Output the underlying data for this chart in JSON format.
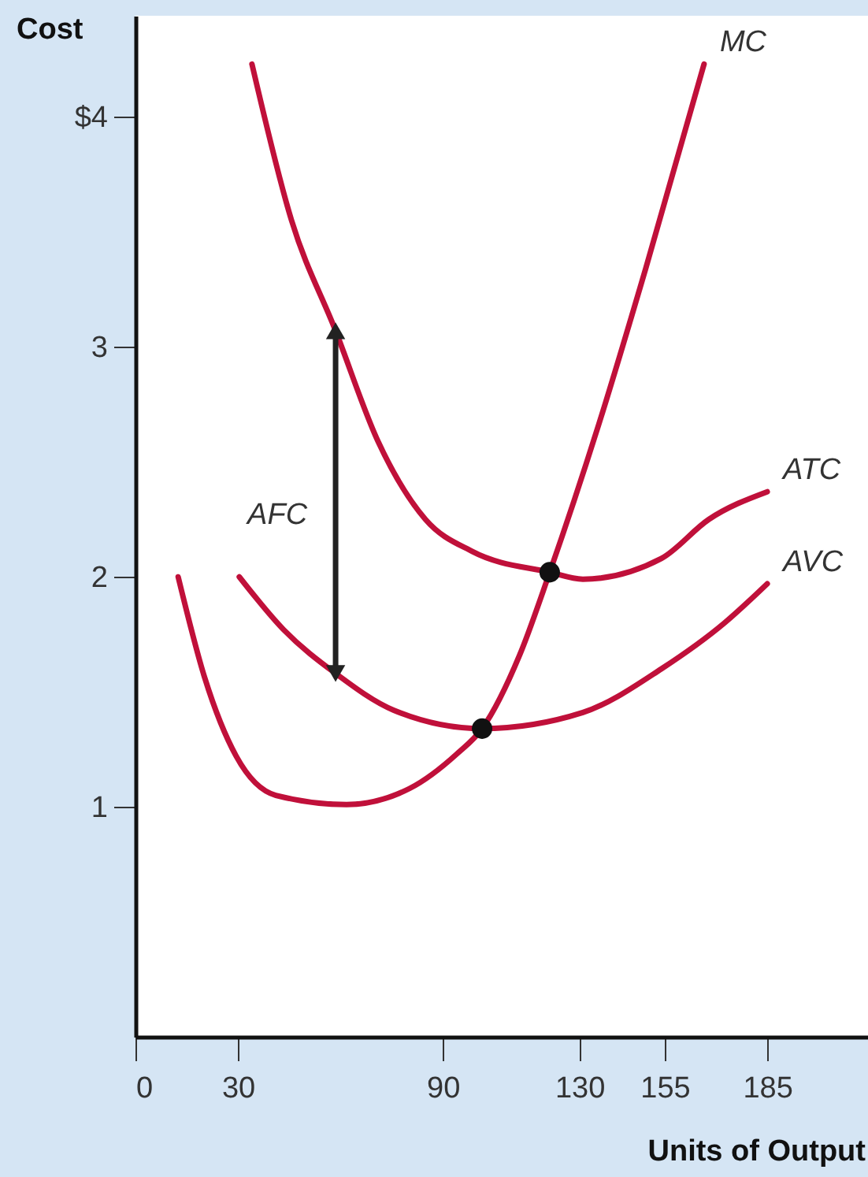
{
  "chart_data": {
    "type": "line",
    "xlabel": "Units of Output",
    "ylabel": "Cost",
    "xlim": [
      0,
      214.5
    ],
    "ylim": [
      0,
      4.44
    ],
    "xticks": [
      {
        "value": 0,
        "label": "0"
      },
      30,
      90,
      130,
      155,
      185
    ],
    "yticks": [
      1,
      2,
      3,
      {
        "value": 4,
        "label": "$4"
      }
    ],
    "grid": false,
    "marker": "none",
    "line_style": "solid",
    "series": [
      {
        "name": "MC",
        "color": "#c0103a",
        "x": [
          12.5,
          20.3,
          29.5,
          41.1,
          61.8,
          80.3,
          94.1,
          101.5,
          112.5,
          121.3,
          135.6,
          149.4,
          166.5
        ],
        "values": [
          2.0,
          1.56,
          1.22,
          1.05,
          1.01,
          1.08,
          1.23,
          1.34,
          1.66,
          2.02,
          2.66,
          3.34,
          4.23
        ]
      },
      {
        "name": "ATC",
        "color": "#c0103a",
        "x": [
          34.1,
          45.7,
          58.6,
          71,
          84.9,
          98.7,
          121.3,
          131,
          154,
          167.9,
          185
        ],
        "values": [
          4.23,
          3.55,
          3.07,
          2.59,
          2.25,
          2.11,
          2.02,
          1.99,
          2.08,
          2.25,
          2.37
        ]
      },
      {
        "name": "AVC",
        "color": "#c0103a",
        "x": [
          30.4,
          43.4,
          58.6,
          75.6,
          101.5,
          131,
          154,
          172.5,
          185
        ],
        "values": [
          2.0,
          1.77,
          1.58,
          1.42,
          1.34,
          1.41,
          1.6,
          1.8,
          1.97
        ]
      },
      {
        "name": "AFC",
        "type": "line",
        "marker": "triangle",
        "color": "#222222",
        "x": [
          58.6,
          58.6
        ],
        "values": [
          1.58,
          3.07
        ]
      },
      {
        "type": "scatter",
        "marker": "circle",
        "color": "#111111",
        "x": [
          121.3,
          101.5
        ],
        "values": [
          2.02,
          1.34
        ]
      }
    ]
  }
}
